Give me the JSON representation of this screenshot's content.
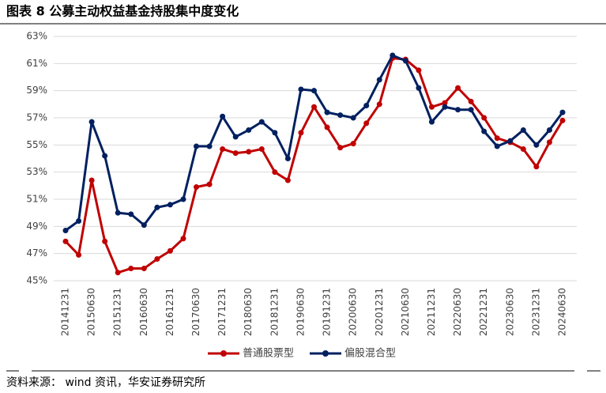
{
  "chart_data": {
    "type": "line",
    "title": "图表 8 公募主动权益基金持股集中度变化",
    "source": "资料来源： wind 资讯，华安证券研究所",
    "categories": [
      "20141231",
      null,
      "20150630",
      null,
      "20151231",
      null,
      "20160630",
      null,
      "20161231",
      null,
      "20170630",
      null,
      "20171231",
      null,
      "20180630",
      null,
      "20181231",
      null,
      "20190630",
      null,
      "20191231",
      null,
      "20200630",
      null,
      "20201231",
      null,
      "20210630",
      null,
      "20211231",
      null,
      "20220630",
      null,
      "20221231",
      null,
      "20230630",
      null,
      "20231231",
      null,
      "20240630"
    ],
    "series": [
      {
        "name": "普通股票型",
        "color": "#c00000",
        "values": [
          47.9,
          46.9,
          52.4,
          47.9,
          45.6,
          45.9,
          45.9,
          46.6,
          47.2,
          48.1,
          51.9,
          52.1,
          54.7,
          54.4,
          54.5,
          54.7,
          53.0,
          52.4,
          55.9,
          57.8,
          56.3,
          54.8,
          55.1,
          56.6,
          58.0,
          61.4,
          61.3,
          60.5,
          57.8,
          58.1,
          59.2,
          58.2,
          57.0,
          55.5,
          55.2,
          54.7,
          53.4,
          55.2,
          56.8
        ]
      },
      {
        "name": "偏股混合型",
        "color": "#002060",
        "values": [
          48.7,
          49.4,
          56.7,
          54.2,
          50.0,
          49.9,
          49.1,
          50.4,
          50.6,
          51.0,
          54.9,
          54.9,
          57.1,
          55.6,
          56.1,
          56.7,
          55.9,
          54.0,
          59.1,
          59.0,
          57.4,
          57.2,
          57.0,
          57.9,
          59.8,
          61.6,
          61.2,
          59.2,
          56.7,
          57.8,
          57.6,
          57.6,
          56.0,
          54.9,
          55.3,
          56.1,
          55.0,
          56.1,
          57.4
        ]
      }
    ],
    "ylim": [
      45,
      63
    ],
    "yticks": [
      {
        "value": 45,
        "label": "45%"
      },
      {
        "value": 47,
        "label": "47%"
      },
      {
        "value": 49,
        "label": "49%"
      },
      {
        "value": 51,
        "label": "51%"
      },
      {
        "value": 53,
        "label": "53%"
      },
      {
        "value": 55,
        "label": "55%"
      },
      {
        "value": 57,
        "label": "57%"
      },
      {
        "value": 59,
        "label": "59%"
      },
      {
        "value": 61,
        "label": "61%"
      },
      {
        "value": 63,
        "label": "63%"
      }
    ],
    "grid": true,
    "legend": "bottom"
  }
}
